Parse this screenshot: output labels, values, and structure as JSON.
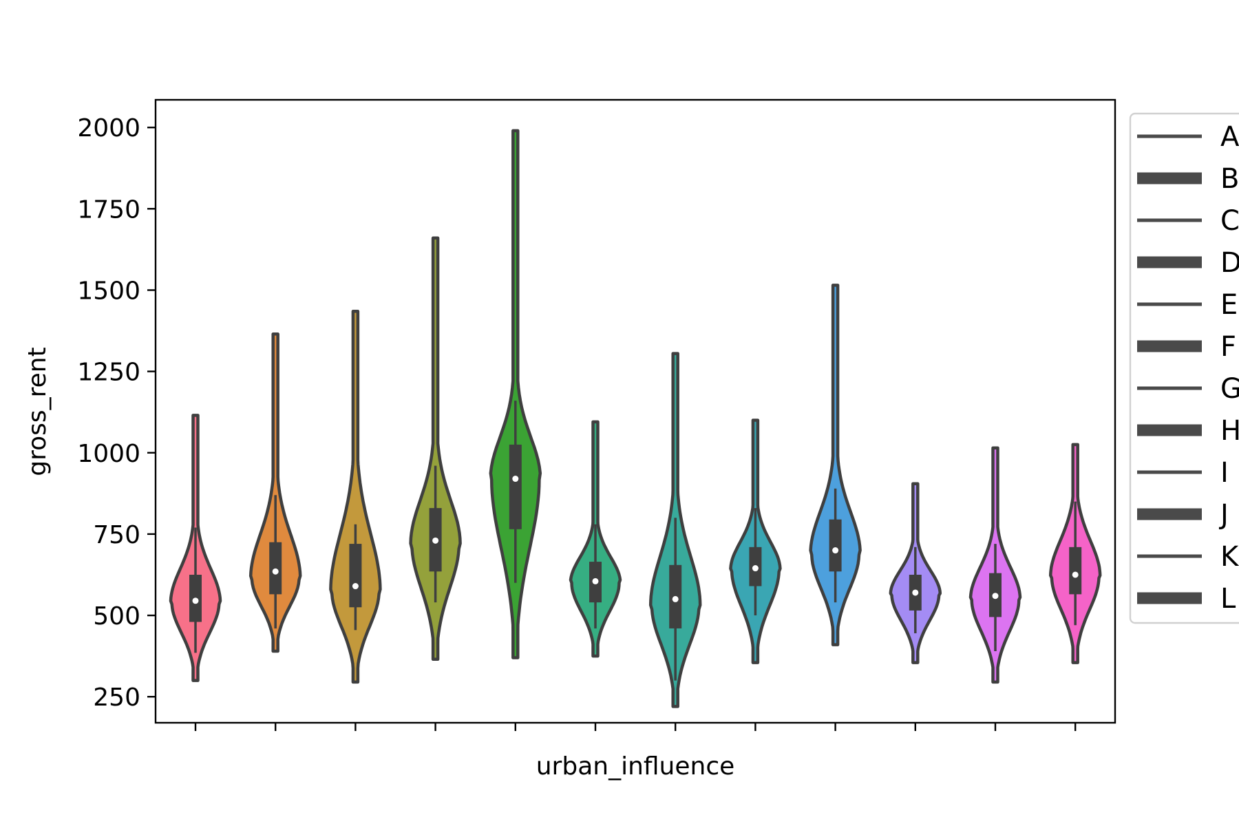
{
  "chart_data": {
    "type": "violin",
    "xlabel": "urban_influence",
    "ylabel": "gross_rent",
    "ylim": [
      170,
      2085
    ],
    "yticks": [
      250,
      500,
      750,
      1000,
      1250,
      1500,
      1750,
      2000
    ],
    "grid": false,
    "legend": {
      "placement": "right",
      "entries": [
        "A",
        "B",
        "C",
        "D",
        "E",
        "F",
        "G",
        "H",
        "I",
        "J",
        "K",
        "L"
      ]
    },
    "series": [
      {
        "name": "A",
        "color": "#f77189",
        "min": 300,
        "max": 1115,
        "q1": 480,
        "median": 545,
        "q3": 625,
        "whisker_low": 385,
        "whisker_high": 770,
        "mode": 540
      },
      {
        "name": "B",
        "color": "#e08a3e",
        "min": 390,
        "max": 1365,
        "q1": 565,
        "median": 635,
        "q3": 725,
        "whisker_low": 460,
        "whisker_high": 870,
        "mode": 615
      },
      {
        "name": "C",
        "color": "#c3993c",
        "min": 295,
        "max": 1435,
        "q1": 525,
        "median": 590,
        "q3": 720,
        "whisker_low": 455,
        "whisker_high": 780,
        "mode": 575
      },
      {
        "name": "D",
        "color": "#94a13b",
        "min": 365,
        "max": 1660,
        "q1": 635,
        "median": 730,
        "q3": 830,
        "whisker_low": 540,
        "whisker_high": 960,
        "mode": 720
      },
      {
        "name": "E",
        "color": "#3ba334",
        "min": 370,
        "max": 1990,
        "q1": 765,
        "median": 920,
        "q3": 1025,
        "whisker_low": 600,
        "whisker_high": 1160,
        "mode": 920
      },
      {
        "name": "F",
        "color": "#36ae82",
        "min": 375,
        "max": 1095,
        "q1": 540,
        "median": 605,
        "q3": 665,
        "whisker_low": 460,
        "whisker_high": 780,
        "mode": 600
      },
      {
        "name": "G",
        "color": "#38aa9b",
        "min": 220,
        "max": 1305,
        "q1": 460,
        "median": 550,
        "q3": 655,
        "whisker_low": 300,
        "whisker_high": 800,
        "mode": 530
      },
      {
        "name": "H",
        "color": "#3aa6b3",
        "min": 355,
        "max": 1100,
        "q1": 590,
        "median": 645,
        "q3": 710,
        "whisker_low": 500,
        "whisker_high": 830,
        "mode": 640
      },
      {
        "name": "I",
        "color": "#4da0dd",
        "min": 410,
        "max": 1515,
        "q1": 635,
        "median": 700,
        "q3": 795,
        "whisker_low": 540,
        "whisker_high": 890,
        "mode": 690
      },
      {
        "name": "J",
        "color": "#a48cf4",
        "min": 355,
        "max": 905,
        "q1": 515,
        "median": 570,
        "q3": 625,
        "whisker_low": 445,
        "whisker_high": 710,
        "mode": 565
      },
      {
        "name": "K",
        "color": "#dc74f1",
        "min": 295,
        "max": 1015,
        "q1": 495,
        "median": 560,
        "q3": 630,
        "whisker_low": 390,
        "whisker_high": 720,
        "mode": 550
      },
      {
        "name": "L",
        "color": "#f563c8",
        "min": 355,
        "max": 1025,
        "q1": 565,
        "median": 625,
        "q3": 710,
        "whisker_low": 470,
        "whisker_high": 850,
        "mode": 620
      }
    ]
  }
}
